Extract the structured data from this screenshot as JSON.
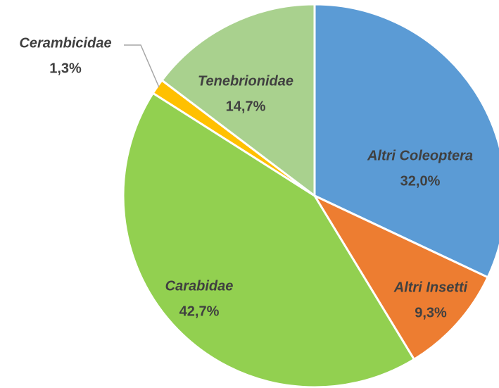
{
  "chart_data": {
    "type": "pie",
    "categories": [
      "Altri Coleoptera",
      "Altri Insetti",
      "Carabidae",
      "Cerambicidae",
      "Tenebrionidae"
    ],
    "values": [
      32.0,
      9.3,
      42.7,
      1.3,
      14.7
    ],
    "value_labels": [
      "32,0%",
      "9,3%",
      "42,7%",
      "1,3%",
      "14,7%"
    ],
    "colors": [
      "#5b9bd5",
      "#ed7d31",
      "#92d050",
      "#ffc000",
      "#a9d18e"
    ]
  }
}
